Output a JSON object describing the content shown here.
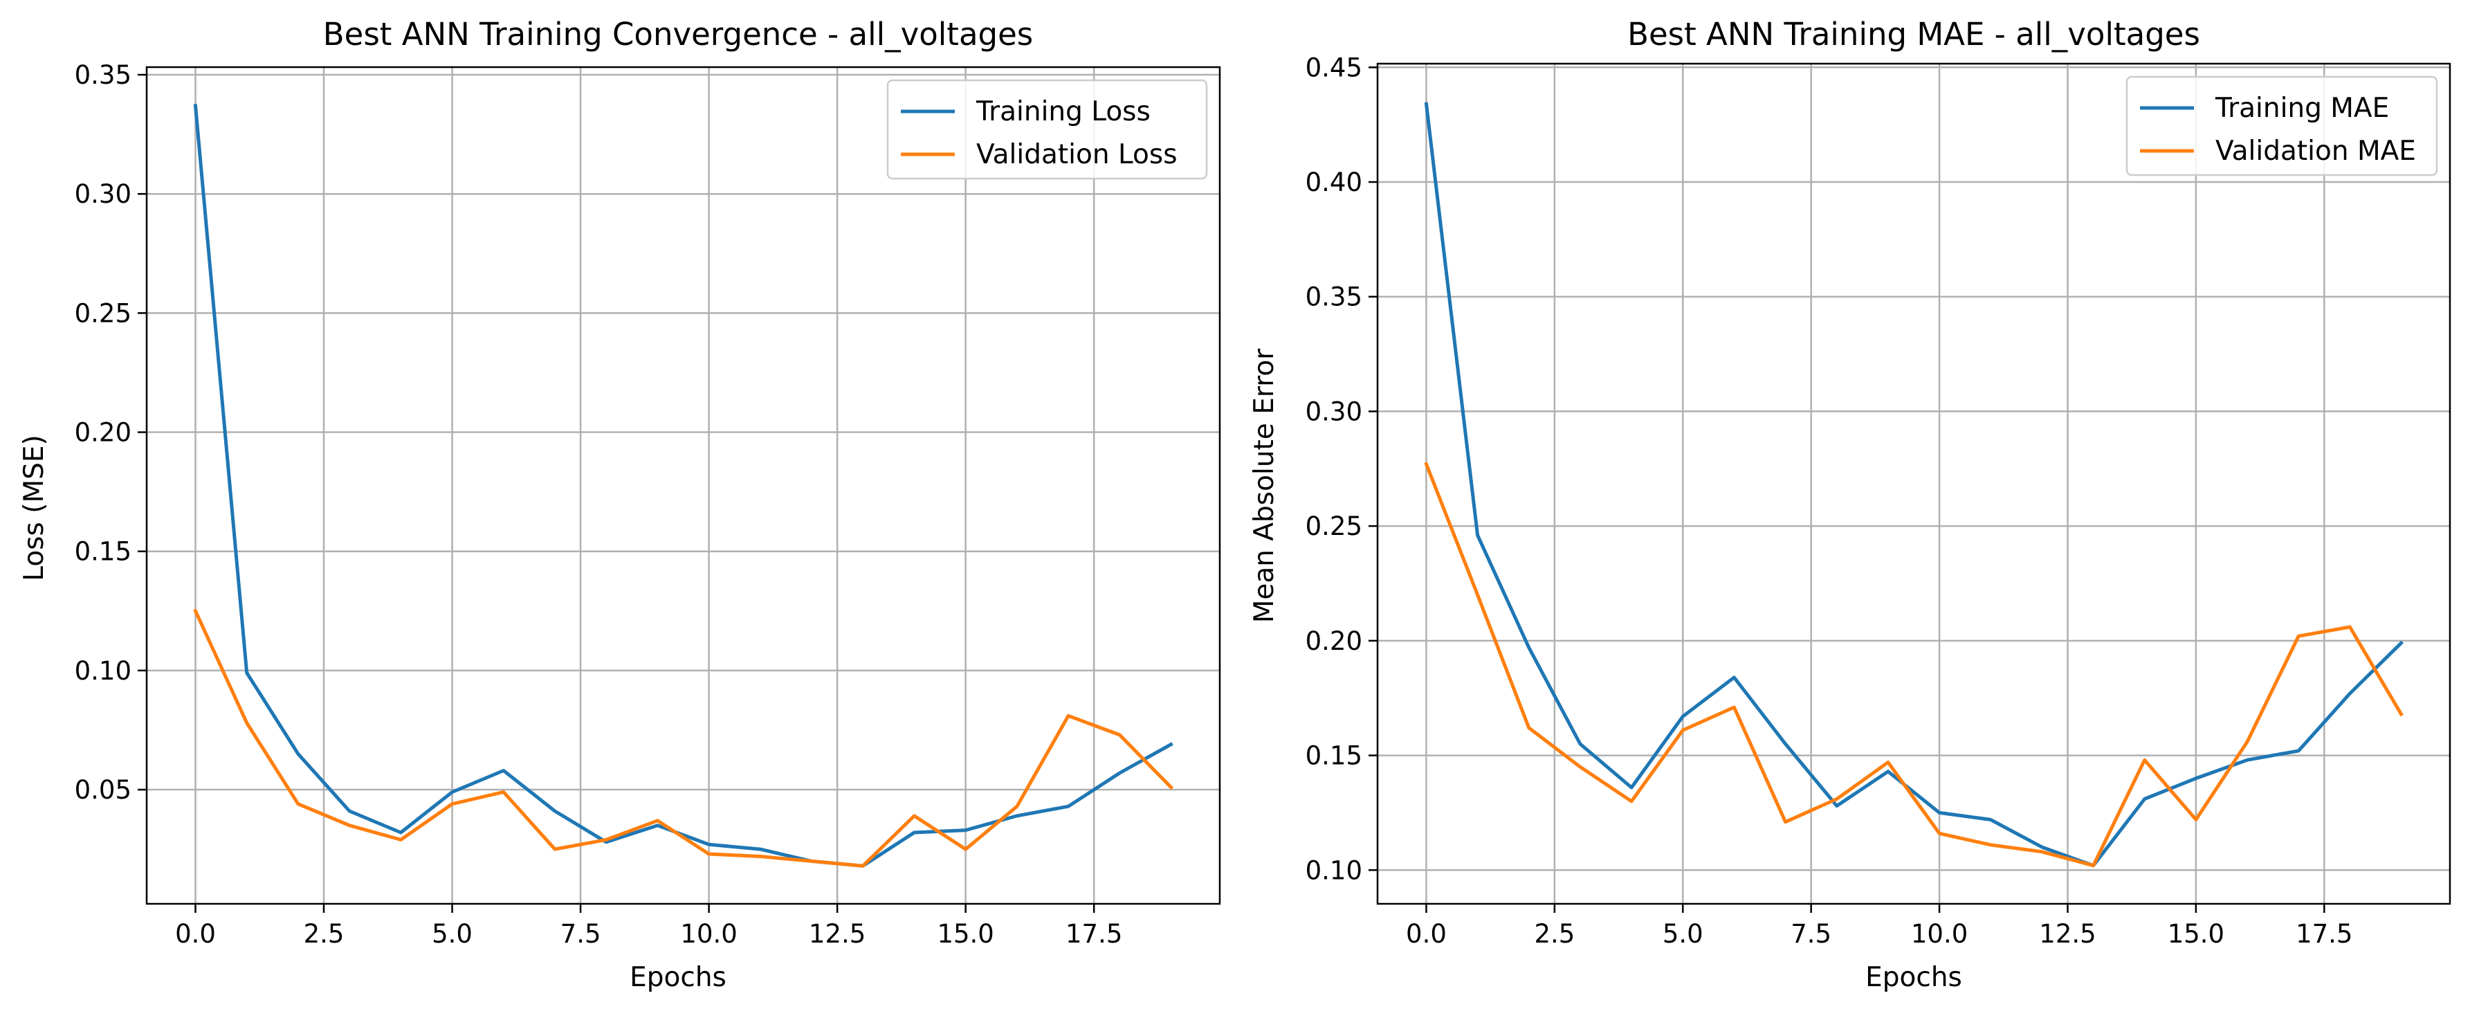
{
  "chart_data": [
    {
      "type": "line",
      "title": "Best ANN Training Convergence - all_voltages",
      "xlabel": "Epochs",
      "ylabel": "Loss (MSE)",
      "xlim": [
        -0.95,
        19.95
      ],
      "ylim": [
        0.0021,
        0.3532
      ],
      "xticks": [
        0.0,
        2.5,
        5.0,
        7.5,
        10.0,
        12.5,
        15.0,
        17.5
      ],
      "xtick_labels": [
        "0.0",
        "2.5",
        "5.0",
        "7.5",
        "10.0",
        "12.5",
        "15.0",
        "17.5"
      ],
      "yticks": [
        0.05,
        0.1,
        0.15,
        0.2,
        0.25,
        0.3,
        0.35
      ],
      "ytick_labels": [
        "0.05",
        "0.10",
        "0.15",
        "0.20",
        "0.25",
        "0.30",
        "0.35"
      ],
      "grid": true,
      "legend_position": "top-right",
      "x": [
        0,
        1,
        2,
        3,
        4,
        5,
        6,
        7,
        8,
        9,
        10,
        11,
        12,
        13,
        14,
        15,
        16,
        17,
        18,
        19
      ],
      "series": [
        {
          "name": "Training Loss",
          "color": "#1f77b4",
          "values": [
            0.337,
            0.099,
            0.065,
            0.041,
            0.032,
            0.049,
            0.058,
            0.041,
            0.028,
            0.035,
            0.027,
            0.025,
            0.02,
            0.018,
            0.032,
            0.033,
            0.039,
            0.043,
            0.057,
            0.069
          ]
        },
        {
          "name": "Validation Loss",
          "color": "#ff7f0e",
          "values": [
            0.125,
            0.078,
            0.044,
            0.035,
            0.029,
            0.044,
            0.049,
            0.025,
            0.029,
            0.037,
            0.023,
            0.022,
            0.02,
            0.018,
            0.039,
            0.025,
            0.043,
            0.081,
            0.073,
            0.051
          ]
        }
      ]
    },
    {
      "type": "line",
      "title": "Best ANN Training MAE - all_voltages",
      "xlabel": "Epochs",
      "ylabel": "Mean Absolute Error",
      "xlim": [
        -0.95,
        19.95
      ],
      "ylim": [
        0.0853,
        0.4516
      ],
      "xticks": [
        0.0,
        2.5,
        5.0,
        7.5,
        10.0,
        12.5,
        15.0,
        17.5
      ],
      "xtick_labels": [
        "0.0",
        "2.5",
        "5.0",
        "7.5",
        "10.0",
        "12.5",
        "15.0",
        "17.5"
      ],
      "yticks": [
        0.1,
        0.15,
        0.2,
        0.25,
        0.3,
        0.35,
        0.4,
        0.45
      ],
      "ytick_labels": [
        "0.10",
        "0.15",
        "0.20",
        "0.25",
        "0.30",
        "0.35",
        "0.40",
        "0.45"
      ],
      "grid": true,
      "legend_position": "top-right",
      "x": [
        0,
        1,
        2,
        3,
        4,
        5,
        6,
        7,
        8,
        9,
        10,
        11,
        12,
        13,
        14,
        15,
        16,
        17,
        18,
        19
      ],
      "series": [
        {
          "name": "Training MAE",
          "color": "#1f77b4",
          "values": [
            0.434,
            0.246,
            0.197,
            0.155,
            0.136,
            0.167,
            0.184,
            0.155,
            0.128,
            0.143,
            0.125,
            0.122,
            0.11,
            0.102,
            0.131,
            0.14,
            0.148,
            0.152,
            0.177,
            0.199
          ]
        },
        {
          "name": "Validation MAE",
          "color": "#ff7f0e",
          "values": [
            0.277,
            0.22,
            0.162,
            0.145,
            0.13,
            0.161,
            0.171,
            0.121,
            0.131,
            0.147,
            0.116,
            0.111,
            0.108,
            0.102,
            0.148,
            0.122,
            0.156,
            0.202,
            0.206,
            0.168
          ]
        }
      ]
    }
  ]
}
